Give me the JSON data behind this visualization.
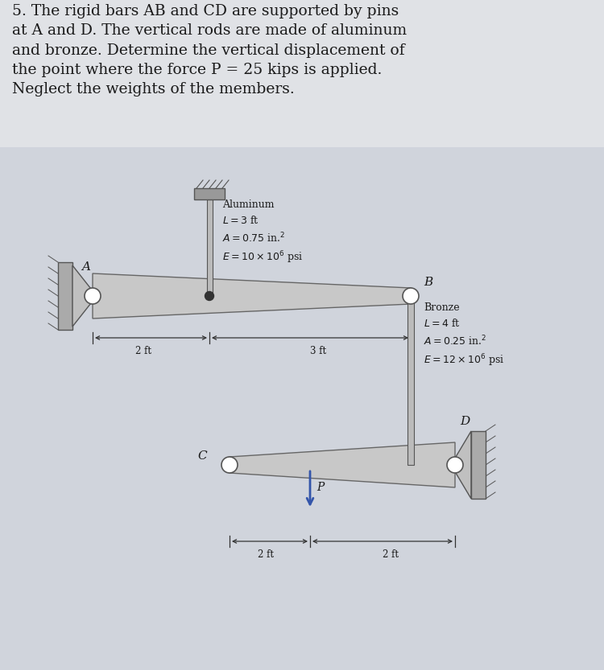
{
  "bg_color": "#d0d4dc",
  "paper_color": "#e8eaee",
  "text_color": "#1a1a1a",
  "title_text": "5. The rigid bars AB and CD are supported by pins\nat A and D. The vertical rods are made of aluminum\nand bronze. Determine the vertical displacement of\nthe point where the force P = 25 kips is applied.\nNeglect the weights of the members.",
  "title_fontsize": 13.5,
  "aluminum_label": "Aluminum\n$L=3$ ft\n$A=0.75$ in.$^2$\n$E=10\\times10^6$ psi",
  "bronze_label": "Bronze\n$L=4$ ft\n$A=0.25$ in.$^2$\n$E=12\\times10^6$ psi",
  "bar_color": "#c8c8c8",
  "bar_edge": "#666666",
  "rod_color": "#bbbbbb",
  "wall_color": "#aaaaaa",
  "label_A": "A",
  "label_B": "B",
  "label_C": "C",
  "label_D": "D",
  "label_P": "P",
  "dim_ab_left": "2 ft",
  "dim_ab_right": "3 ft",
  "dim_cd_left": "2 ft",
  "dim_cd_right": "2 ft",
  "arrow_color": "#3355aa"
}
